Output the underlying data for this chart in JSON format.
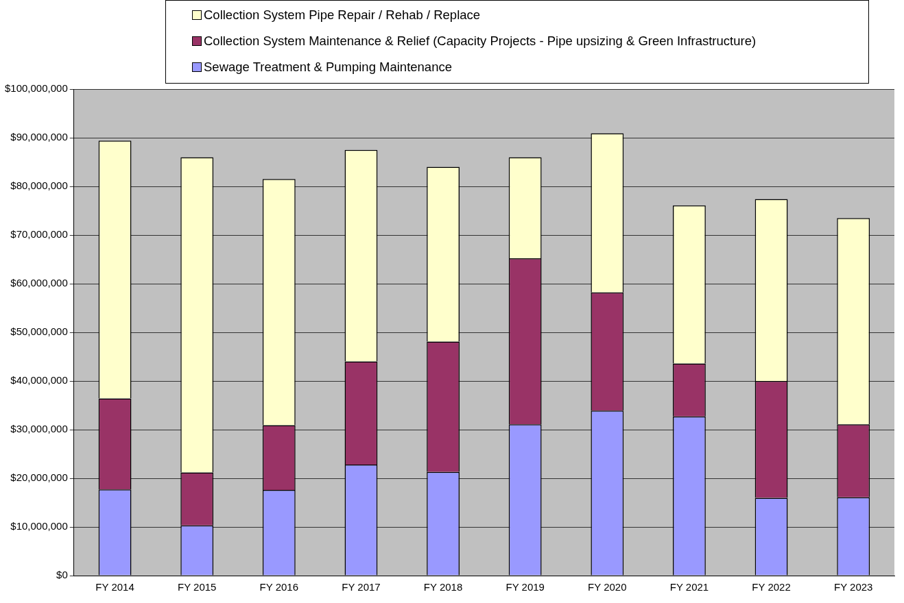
{
  "chart_data": {
    "type": "bar",
    "stacked": true,
    "categories": [
      "FY 2014",
      "FY 2015",
      "FY 2016",
      "FY 2017",
      "FY 2018",
      "FY 2019",
      "FY 2020",
      "FY 2021",
      "FY 2022",
      "FY 2023"
    ],
    "series": [
      {
        "name": "Sewage Treatment & Pumping Maintenance",
        "color": "#9999ff",
        "values": [
          17700000,
          10300000,
          17600000,
          22800000,
          21300000,
          31100000,
          33900000,
          32700000,
          16000000,
          16100000
        ]
      },
      {
        "name": "Collection System Maintenance & Relief (Capacity Projects - Pipe upsizing & Green Infrastructure)",
        "color": "#993366",
        "values": [
          18700000,
          10900000,
          13300000,
          21200000,
          26800000,
          34100000,
          24300000,
          10900000,
          24000000,
          15000000
        ]
      },
      {
        "name": "Collection System Pipe Repair / Rehab / Replace",
        "color": "#ffffcc",
        "values": [
          53000000,
          64800000,
          50600000,
          43500000,
          35900000,
          20800000,
          32700000,
          32500000,
          37400000,
          42400000
        ]
      }
    ],
    "ylim": [
      0,
      100000000
    ],
    "yticks": [
      {
        "value": 0,
        "label": "$0"
      },
      {
        "value": 10000000,
        "label": "$10,000,000"
      },
      {
        "value": 20000000,
        "label": "$20,000,000"
      },
      {
        "value": 30000000,
        "label": "$30,000,000"
      },
      {
        "value": 40000000,
        "label": "$40,000,000"
      },
      {
        "value": 50000000,
        "label": "$50,000,000"
      },
      {
        "value": 60000000,
        "label": "$60,000,000"
      },
      {
        "value": 70000000,
        "label": "$70,000,000"
      },
      {
        "value": 80000000,
        "label": "$80,000,000"
      },
      {
        "value": 90000000,
        "label": "$90,000,000"
      },
      {
        "value": 100000000,
        "label": "$100,000,000"
      }
    ],
    "grid": "y",
    "legend": "top"
  }
}
